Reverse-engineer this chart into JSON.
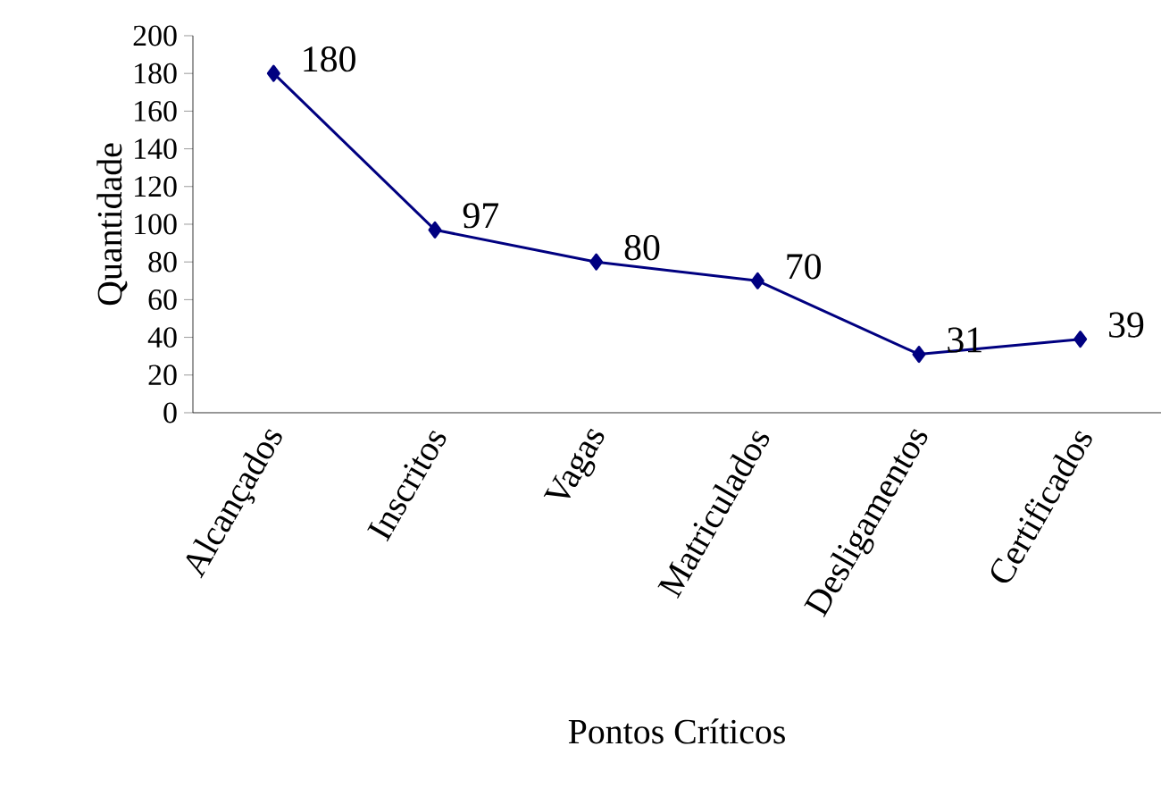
{
  "chart_data": {
    "type": "line",
    "xlabel": "Pontos Críticos",
    "ylabel": "Quantidade",
    "categories": [
      "Alcançados",
      "Inscritos",
      "Vagas",
      "Matriculados",
      "Desligamentos",
      "Certificados"
    ],
    "series": [
      {
        "color": "#000080",
        "values": [
          180,
          97,
          80,
          70,
          31,
          39
        ]
      }
    ],
    "ylim": [
      0,
      200
    ],
    "yticks": [
      0,
      20,
      40,
      60,
      80,
      100,
      120,
      140,
      160,
      180,
      200
    ],
    "marker": "diamond",
    "line_style": "solid",
    "data_labels": true,
    "grid": false
  }
}
